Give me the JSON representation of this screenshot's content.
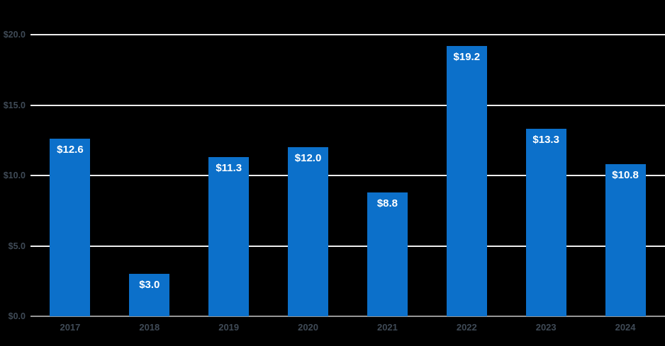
{
  "chart_data": {
    "type": "bar",
    "title": "",
    "xlabel": "",
    "ylabel": "",
    "categories": [
      "2017",
      "2018",
      "2019",
      "2020",
      "2021",
      "2022",
      "2023",
      "2024"
    ],
    "values": [
      12.6,
      3.0,
      11.3,
      12.0,
      8.8,
      19.2,
      13.3,
      10.8
    ],
    "bar_labels": [
      "$12.6",
      "$3.0",
      "$11.3",
      "$12.0",
      "$8.8",
      "$19.2",
      "$13.3",
      "$10.8"
    ],
    "y_ticks": [
      {
        "value": 0,
        "label": "$0.0"
      },
      {
        "value": 5,
        "label": "$5.0"
      },
      {
        "value": 10,
        "label": "$10.0"
      },
      {
        "value": 15,
        "label": "$15.0"
      },
      {
        "value": 20,
        "label": "$20.0"
      }
    ],
    "ylim": [
      0,
      20
    ],
    "grid": "horizontal",
    "legend": "none",
    "data_label_position": "inside-top",
    "colors": {
      "background": "#000000",
      "bar": "#0c70ca",
      "gridline": "#ededed",
      "axis_line": "#969696",
      "tick_label": "#3f4a56",
      "data_label": "#ffffff"
    }
  }
}
